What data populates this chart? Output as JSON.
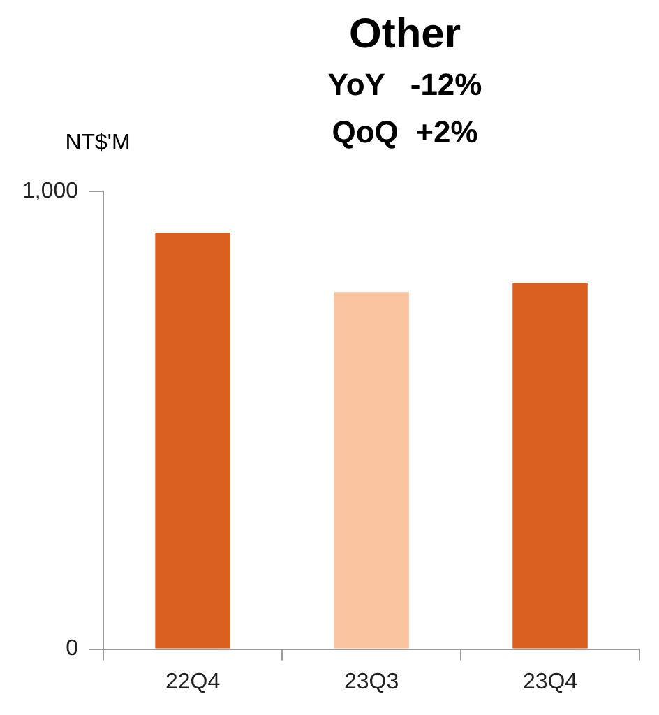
{
  "chart_data": {
    "type": "bar",
    "title": "Other",
    "subtitle": "YoY   -12%",
    "annotations": [
      "QoQ  +2%"
    ],
    "ylabel": "NT$'M",
    "categories": [
      "22Q4",
      "23Q3",
      "23Q4"
    ],
    "values": [
      910,
      780,
      800
    ],
    "colors": [
      "#d9601f",
      "#fbc4a0",
      "#d9601f"
    ],
    "ylim": [
      0,
      1000
    ],
    "yticks": [
      0,
      {
        "value": 1000,
        "label": "1,000"
      }
    ]
  }
}
